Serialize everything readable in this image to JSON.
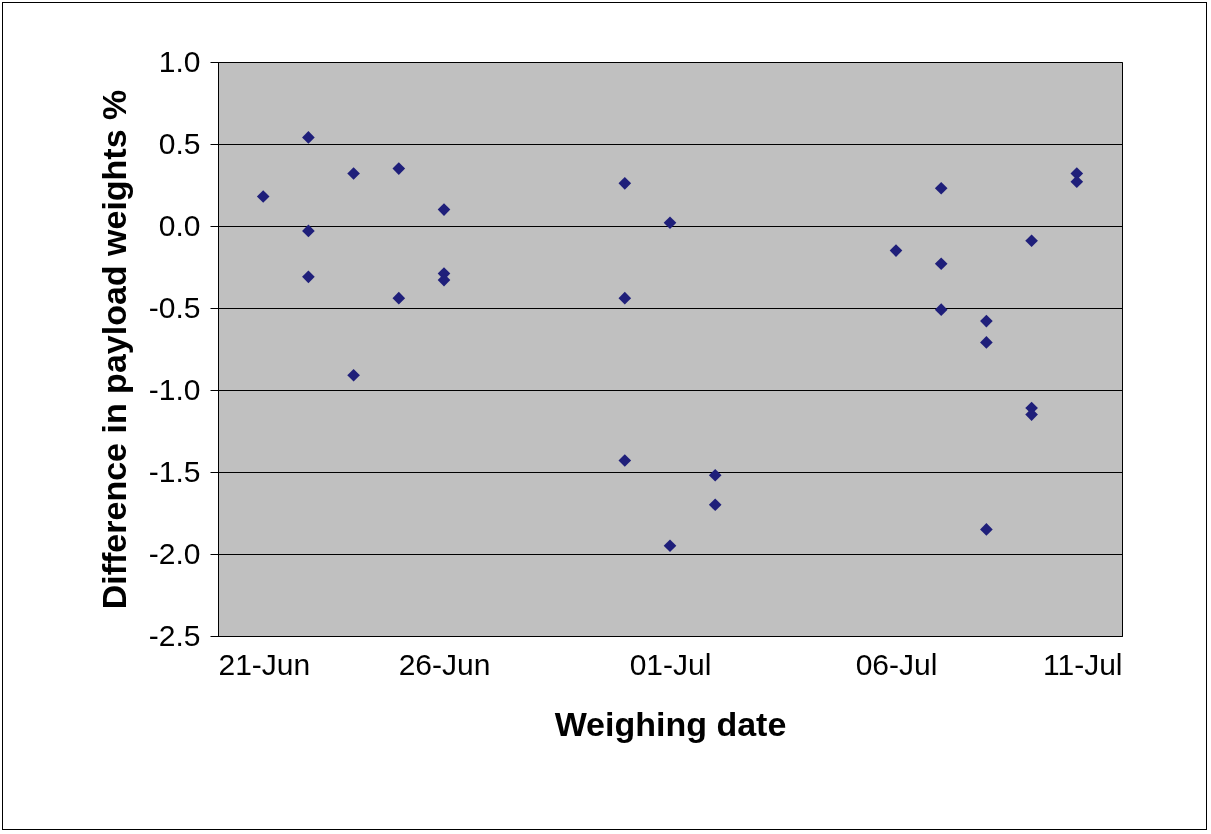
{
  "chart_data": {
    "type": "scatter",
    "xlabel": "Weighing date",
    "ylabel": "Difference in payload weights %",
    "x": [
      "--06-22",
      "--06-23",
      "--06-23",
      "--06-23",
      "--06-24",
      "--06-24",
      "--06-25",
      "--06-25",
      "--06-26",
      "--06-26",
      "--06-26",
      "--06-30",
      "--06-30",
      "--06-30",
      "--07-01",
      "--07-01",
      "--07-02",
      "--07-02",
      "--07-06",
      "--07-07",
      "--07-07",
      "--07-07",
      "--07-08",
      "--07-08",
      "--07-08",
      "--07-09",
      "--07-09",
      "--07-09",
      "--07-10",
      "--07-10"
    ],
    "series": [
      {
        "color": "#1f1f7a",
        "values": [
          0.18,
          0.54,
          -0.03,
          -0.31,
          0.32,
          -0.91,
          0.35,
          -0.44,
          0.1,
          -0.29,
          -0.33,
          0.26,
          -0.44,
          -1.43,
          0.02,
          -1.95,
          -1.52,
          -1.7,
          -0.15,
          0.23,
          -0.23,
          -0.51,
          -0.58,
          -0.71,
          -1.85,
          -0.09,
          -1.11,
          -1.15,
          0.32,
          0.27
        ]
      }
    ],
    "xlim": [
      "--06-21",
      "--07-11"
    ],
    "xticks": [
      {
        "value": "--06-21",
        "label": "21-Jun"
      },
      {
        "value": "--06-26",
        "label": "26-Jun"
      },
      {
        "value": "--07-01",
        "label": "01-Jul"
      },
      {
        "value": "--07-06",
        "label": "06-Jul"
      },
      {
        "value": "--07-11",
        "label": "11-Jul"
      }
    ],
    "ylim": [
      -2.5,
      1.0
    ],
    "yticks": [
      {
        "value": -2.5,
        "label": "-2.5"
      },
      {
        "value": -2,
        "label": "-2.0"
      },
      {
        "value": -1.5,
        "label": "-1.5"
      },
      {
        "value": -1,
        "label": "-1.0"
      },
      {
        "value": -0.5,
        "label": "-0.5"
      },
      {
        "value": 0,
        "label": "0.0"
      },
      {
        "value": 0.5,
        "label": "0.5"
      },
      {
        "value": 1,
        "label": "1.0"
      }
    ],
    "grid": "y",
    "marker": "diamond"
  }
}
